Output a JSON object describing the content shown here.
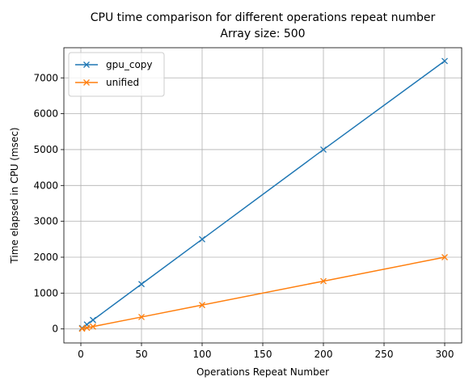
{
  "chart_data": {
    "type": "line",
    "title": "CPU time comparison for different operations repeat number",
    "subtitle": "Array size: 500",
    "xlabel": "Operations Repeat Number",
    "ylabel": "Time elapsed in CPU (msec)",
    "xlim": [
      -14,
      314
    ],
    "ylim": [
      -390,
      7840
    ],
    "xticks": [
      0,
      50,
      100,
      150,
      200,
      250,
      300
    ],
    "yticks": [
      0,
      1000,
      2000,
      3000,
      4000,
      5000,
      6000,
      7000
    ],
    "grid": true,
    "legend_position": "top-left",
    "series": [
      {
        "name": "gpu_copy",
        "color": "#1f77b4",
        "marker": "x",
        "x": [
          1,
          5,
          10,
          50,
          100,
          200,
          300
        ],
        "y": [
          25,
          125,
          250,
          1250,
          2500,
          5000,
          7470
        ]
      },
      {
        "name": "unified",
        "color": "#ff7f0e",
        "marker": "x",
        "x": [
          1,
          5,
          10,
          50,
          100,
          200,
          300
        ],
        "y": [
          7,
          33,
          67,
          333,
          667,
          1333,
          2000
        ]
      }
    ]
  }
}
